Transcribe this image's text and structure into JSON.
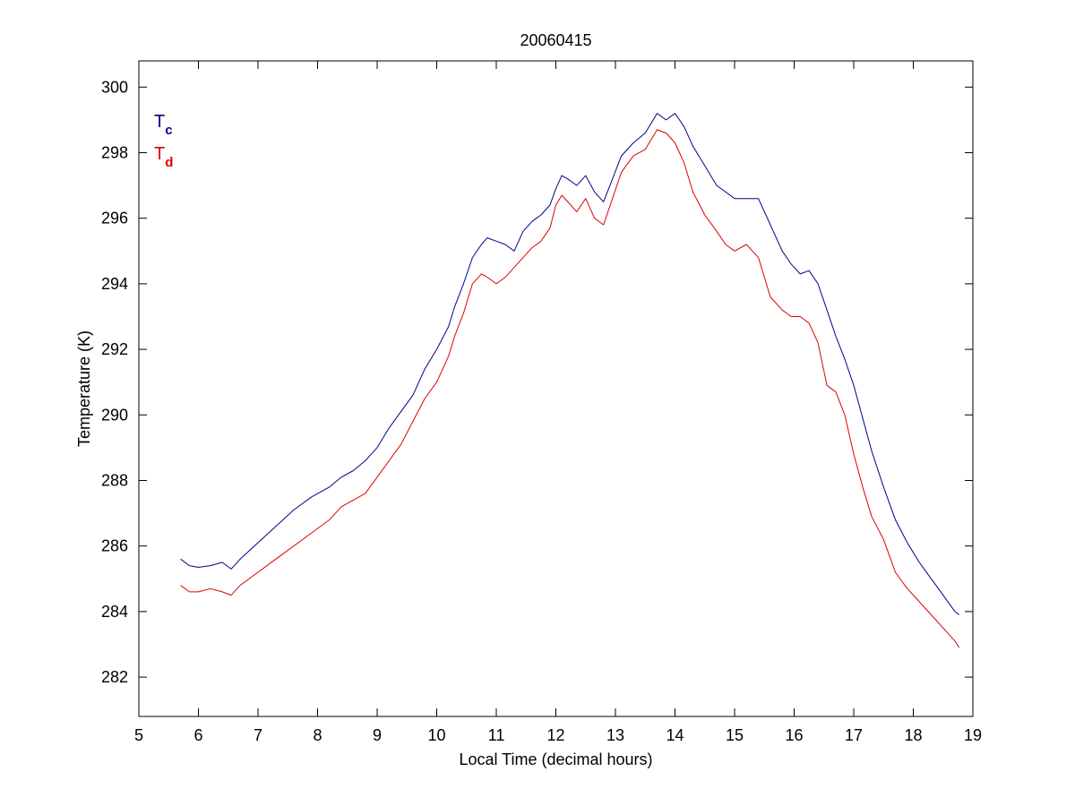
{
  "figure": {
    "background": "#ffffff"
  },
  "chart_data": {
    "type": "line",
    "title": "20060415",
    "xlabel": "Local Time (decimal hours)",
    "ylabel": "Temperature (K)",
    "xlim": [
      5,
      19
    ],
    "ylim": [
      280.8,
      300.8
    ],
    "xticks": [
      "5",
      "6",
      "7",
      "8",
      "9",
      "10",
      "11",
      "12",
      "13",
      "14",
      "15",
      "16",
      "17",
      "18",
      "19"
    ],
    "yticks": [
      "282",
      "284",
      "286",
      "288",
      "290",
      "292",
      "294",
      "296",
      "298",
      "300"
    ],
    "grid": false,
    "legend_position": "top-left",
    "series": [
      {
        "legend_base": "T",
        "legend_sub": "c",
        "color": "#00008b",
        "x": [
          5.7,
          5.85,
          6.0,
          6.2,
          6.4,
          6.55,
          6.7,
          7.0,
          7.3,
          7.6,
          7.9,
          8.2,
          8.4,
          8.6,
          8.8,
          9.0,
          9.2,
          9.4,
          9.6,
          9.8,
          10.0,
          10.2,
          10.3,
          10.45,
          10.6,
          10.75,
          10.85,
          11.0,
          11.15,
          11.3,
          11.45,
          11.6,
          11.75,
          11.9,
          12.0,
          12.1,
          12.2,
          12.35,
          12.5,
          12.65,
          12.8,
          12.95,
          13.1,
          13.3,
          13.5,
          13.7,
          13.85,
          14.0,
          14.15,
          14.3,
          14.5,
          14.7,
          14.85,
          15.0,
          15.2,
          15.4,
          15.6,
          15.8,
          15.95,
          16.1,
          16.25,
          16.4,
          16.55,
          16.7,
          16.85,
          17.0,
          17.15,
          17.3,
          17.5,
          17.7,
          17.9,
          18.1,
          18.3,
          18.5,
          18.7,
          18.77
        ],
        "values": [
          285.6,
          285.4,
          285.35,
          285.4,
          285.5,
          285.3,
          285.6,
          286.1,
          286.6,
          287.1,
          287.5,
          287.8,
          288.1,
          288.3,
          288.6,
          289.0,
          289.6,
          290.1,
          290.6,
          291.4,
          292.0,
          292.7,
          293.3,
          294.0,
          294.8,
          295.2,
          295.4,
          295.3,
          295.2,
          295.0,
          295.6,
          295.9,
          296.1,
          296.4,
          296.9,
          297.3,
          297.2,
          297.0,
          297.3,
          296.8,
          296.5,
          297.2,
          297.9,
          298.3,
          298.6,
          299.2,
          299.0,
          299.2,
          298.8,
          298.2,
          297.6,
          297.0,
          296.8,
          296.6,
          296.6,
          296.6,
          295.8,
          295.0,
          294.6,
          294.3,
          294.4,
          294.0,
          293.2,
          292.4,
          291.7,
          290.9,
          289.9,
          288.9,
          287.8,
          286.8,
          286.1,
          285.5,
          285.0,
          284.5,
          284.0,
          283.9
        ]
      },
      {
        "legend_base": "T",
        "legend_sub": "d",
        "color": "#dd0000",
        "x": [
          5.7,
          5.85,
          6.0,
          6.2,
          6.4,
          6.55,
          6.7,
          7.0,
          7.3,
          7.6,
          7.9,
          8.2,
          8.4,
          8.6,
          8.8,
          9.0,
          9.2,
          9.4,
          9.6,
          9.8,
          10.0,
          10.2,
          10.3,
          10.45,
          10.6,
          10.75,
          10.85,
          11.0,
          11.15,
          11.3,
          11.45,
          11.6,
          11.75,
          11.9,
          12.0,
          12.1,
          12.2,
          12.35,
          12.5,
          12.65,
          12.8,
          12.95,
          13.1,
          13.3,
          13.5,
          13.7,
          13.85,
          14.0,
          14.15,
          14.3,
          14.5,
          14.7,
          14.85,
          15.0,
          15.2,
          15.4,
          15.6,
          15.8,
          15.95,
          16.1,
          16.25,
          16.4,
          16.55,
          16.7,
          16.85,
          17.0,
          17.15,
          17.3,
          17.5,
          17.7,
          17.9,
          18.1,
          18.3,
          18.5,
          18.7,
          18.77
        ],
        "values": [
          284.8,
          284.6,
          284.6,
          284.7,
          284.6,
          284.5,
          284.8,
          285.2,
          285.6,
          286.0,
          286.4,
          286.8,
          287.2,
          287.4,
          287.6,
          288.1,
          288.6,
          289.1,
          289.8,
          290.5,
          291.0,
          291.8,
          292.4,
          293.1,
          294.0,
          294.3,
          294.2,
          294.0,
          294.2,
          294.5,
          294.8,
          295.1,
          295.3,
          295.7,
          296.4,
          296.7,
          296.5,
          296.2,
          296.6,
          296.0,
          295.8,
          296.6,
          297.4,
          297.9,
          298.1,
          298.7,
          298.6,
          298.3,
          297.7,
          296.8,
          296.1,
          295.6,
          295.2,
          295.0,
          295.2,
          294.8,
          293.6,
          293.2,
          293.0,
          293.0,
          292.8,
          292.2,
          290.9,
          290.7,
          290.0,
          288.8,
          287.8,
          286.9,
          286.2,
          285.2,
          284.7,
          284.3,
          283.9,
          283.5,
          283.1,
          282.9
        ]
      }
    ]
  }
}
